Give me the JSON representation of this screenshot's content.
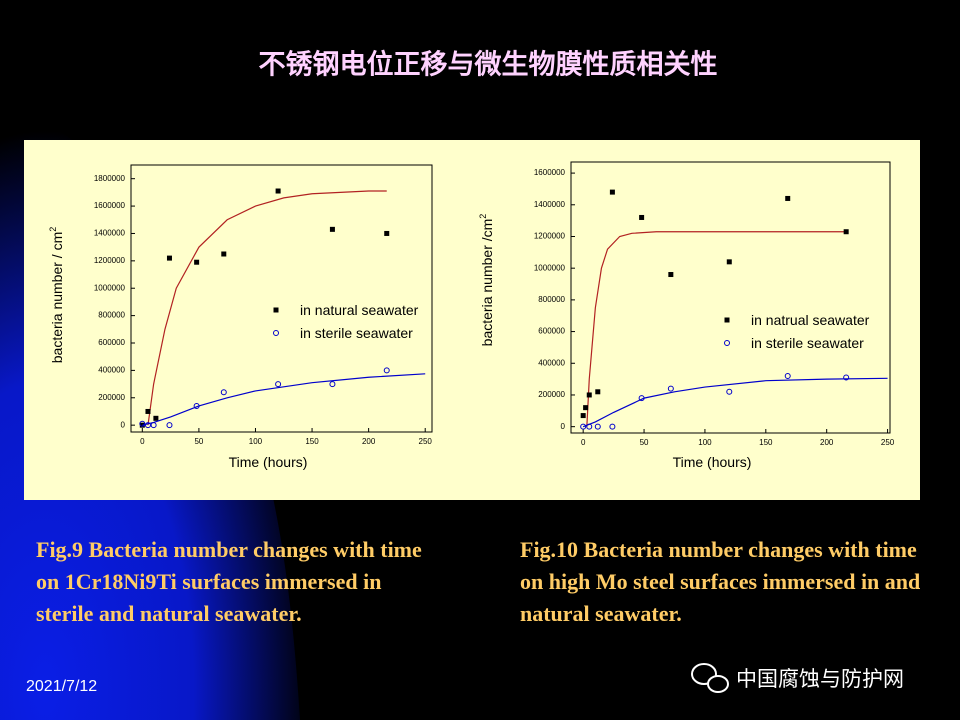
{
  "slide": {
    "title": "不锈钢电位正移与微生物膜性质相关性",
    "captions": [
      "Fig.9 Bacteria number changes with time on  1Cr18Ni9Ti surfaces immersed in sterile and natural seawater.",
      "Fig.10 Bacteria number changes with time on high Mo steel surfaces immersed in and natural seawater."
    ],
    "date": "2021/7/12",
    "watermark": "中国腐蚀与防护网"
  },
  "chart_data": [
    {
      "type": "scatter",
      "x_label": "Time (hours)",
      "y_label": "bacteria number / cm",
      "y_label_sup": "2",
      "xlim": [
        -10,
        256
      ],
      "ylim": [
        -50000,
        1900000
      ],
      "xticks": [
        0,
        50,
        100,
        150,
        200,
        250
      ],
      "yticks": [
        0,
        200000,
        400000,
        600000,
        800000,
        1000000,
        1200000,
        1400000,
        1600000,
        1800000
      ],
      "series": [
        {
          "name": "in natural seawater",
          "color": "#000000",
          "marker": "square",
          "fit_color": "#b22222",
          "x": [
            0,
            5,
            12,
            24,
            48,
            72,
            120,
            168,
            216
          ],
          "values": [
            0,
            100000,
            50000,
            1220000,
            1190000,
            1250000,
            1710000,
            1430000,
            1400000
          ],
          "fit": {
            "x": [
              5,
              10,
              20,
              30,
              50,
              75,
              100,
              125,
              150,
              175,
              200,
              216
            ],
            "values": [
              0,
              300000,
              700000,
              1000000,
              1300000,
              1500000,
              1600000,
              1660000,
              1690000,
              1700000,
              1710000,
              1710000
            ]
          }
        },
        {
          "name": "in sterile seawater",
          "color": "#0000cc",
          "marker": "circle",
          "fit_color": "#0000cc",
          "x": [
            0,
            5,
            10,
            24,
            48,
            72,
            120,
            168,
            216
          ],
          "values": [
            10000,
            0,
            0,
            0,
            140000,
            240000,
            300000,
            300000,
            400000
          ],
          "fit": {
            "x": [
              0,
              10,
              25,
              50,
              75,
              100,
              150,
              200,
              250
            ],
            "values": [
              0,
              20000,
              60000,
              140000,
              200000,
              250000,
              310000,
              350000,
              375000
            ]
          }
        }
      ]
    },
    {
      "type": "scatter",
      "x_label": "Time (hours)",
      "y_label": "bacteria number  /cm",
      "y_label_sup": "2",
      "xlim": [
        -10,
        252
      ],
      "ylim": [
        -40000,
        1670000
      ],
      "xticks": [
        0,
        50,
        100,
        150,
        200,
        250
      ],
      "yticks": [
        0,
        200000,
        400000,
        600000,
        800000,
        1000000,
        1200000,
        1400000,
        1600000
      ],
      "series": [
        {
          "name": "in natrual seawater",
          "color": "#000000",
          "marker": "square",
          "fit_color": "#b22222",
          "x": [
            0,
            2,
            5,
            12,
            24,
            48,
            72,
            120,
            168,
            216
          ],
          "values": [
            70000,
            120000,
            200000,
            220000,
            1480000,
            1320000,
            960000,
            1040000,
            1440000,
            1230000
          ],
          "fit": {
            "x": [
              3,
              5,
              10,
              15,
              20,
              30,
              40,
              60,
              100,
              216
            ],
            "values": [
              0,
              300000,
              750000,
              1000000,
              1120000,
              1200000,
              1220000,
              1230000,
              1230000,
              1230000
            ]
          }
        },
        {
          "name": "in sterile seawater",
          "color": "#0000cc",
          "marker": "circle",
          "fit_color": "#0000cc",
          "x": [
            0,
            5,
            12,
            24,
            48,
            72,
            120,
            168,
            216
          ],
          "values": [
            0,
            0,
            0,
            0,
            180000,
            240000,
            220000,
            320000,
            310000
          ],
          "fit": {
            "x": [
              0,
              10,
              25,
              50,
              75,
              100,
              150,
              200,
              250
            ],
            "values": [
              0,
              30000,
              90000,
              180000,
              220000,
              250000,
              290000,
              300000,
              305000
            ]
          }
        }
      ]
    }
  ]
}
